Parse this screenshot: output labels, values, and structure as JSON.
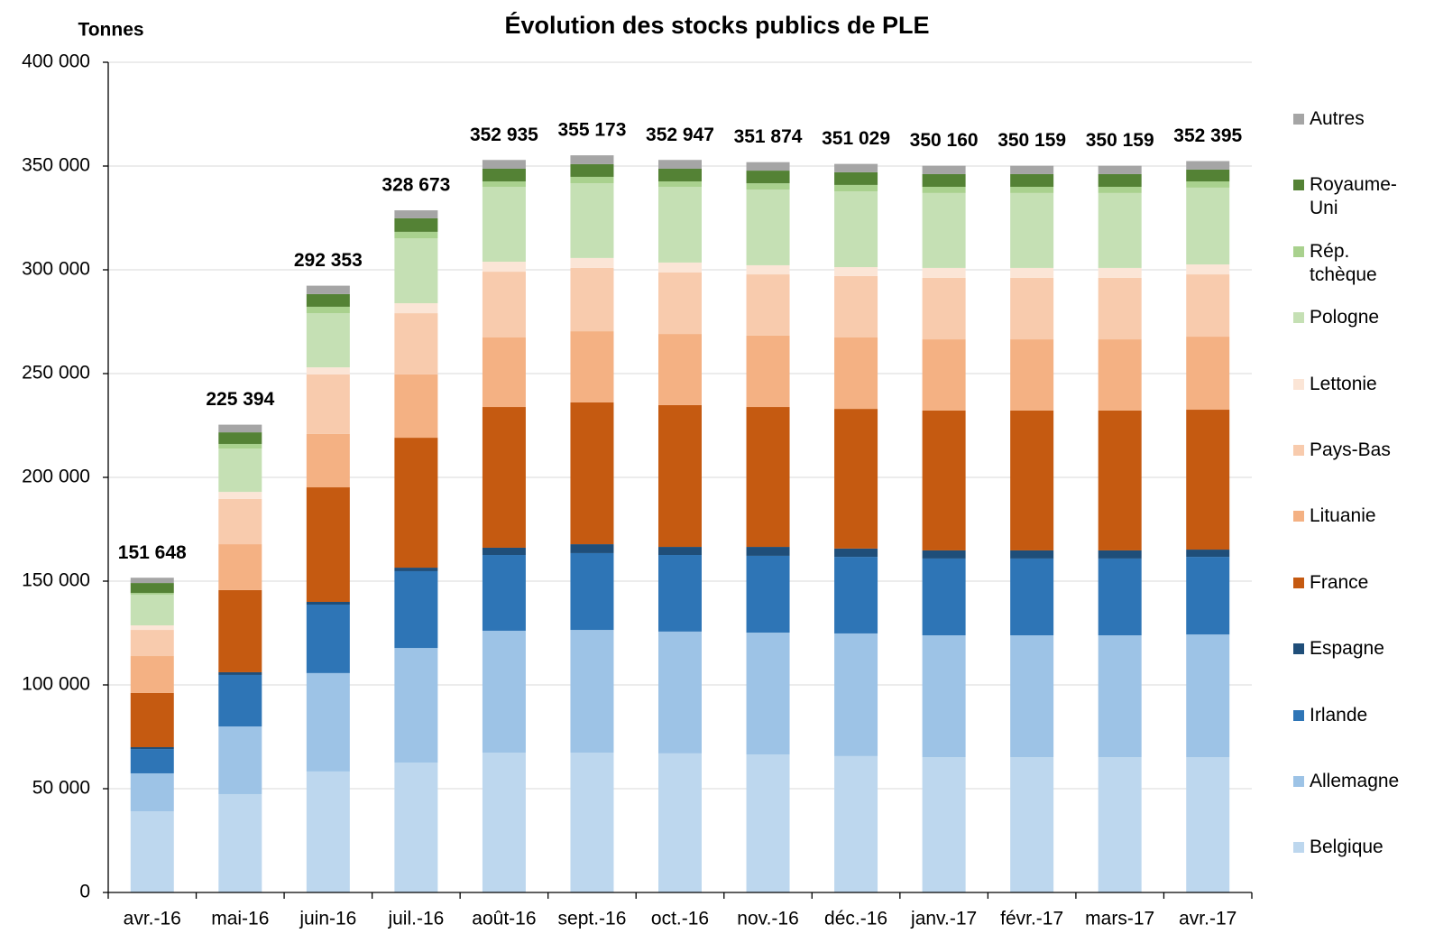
{
  "chart_data": {
    "type": "stacked_bar",
    "title": "Évolution des stocks publics de PLE",
    "y_label": "Tonnes",
    "categories": [
      "avr.-16",
      "mai-16",
      "juin-16",
      "juil.-16",
      "août-16",
      "sept.-16",
      "oct.-16",
      "nov.-16",
      "déc.-16",
      "janv.-17",
      "févr.-17",
      "mars-17",
      "avr.-17"
    ],
    "series": [
      {
        "name": "Belgique",
        "color": "#bdd7ee",
        "values": [
          39100,
          47400,
          58300,
          62600,
          67400,
          67400,
          67000,
          66500,
          65700,
          65200,
          65200,
          65200,
          65200
        ]
      },
      {
        "name": "Allemagne",
        "color": "#9dc3e6",
        "values": [
          18300,
          32600,
          47400,
          55200,
          58700,
          59100,
          58700,
          58700,
          59100,
          58700,
          58700,
          58700,
          59100
        ]
      },
      {
        "name": "Irlande",
        "color": "#2e75b6",
        "values": [
          11700,
          24800,
          33000,
          37000,
          36500,
          37000,
          36900,
          37000,
          36900,
          37000,
          37000,
          37000,
          37400
        ]
      },
      {
        "name": "Espagne",
        "color": "#1f4e79",
        "values": [
          900,
          1300,
          1300,
          1700,
          3500,
          4300,
          3900,
          4300,
          4000,
          3900,
          3900,
          3900,
          3500
        ]
      },
      {
        "name": "France",
        "color": "#c55a11",
        "values": [
          26100,
          39600,
          55200,
          62600,
          67800,
          68300,
          68300,
          67400,
          67300,
          67400,
          67400,
          67400,
          67400
        ]
      },
      {
        "name": "Lituanie",
        "color": "#f4b183",
        "values": [
          17800,
          22100,
          25700,
          30500,
          33500,
          34300,
          34300,
          34400,
          34400,
          34300,
          34300,
          34300,
          35200
        ]
      },
      {
        "name": "Pays-Bas",
        "color": "#f8cbad",
        "values": [
          12600,
          21800,
          28700,
          29500,
          31700,
          30500,
          29600,
          29500,
          29600,
          29600,
          29600,
          29600,
          30000
        ]
      },
      {
        "name": "Lettonie",
        "color": "#fbe5d6",
        "values": [
          2200,
          3400,
          3400,
          4800,
          4800,
          4800,
          4800,
          4400,
          4300,
          4800,
          4800,
          4800,
          4800
        ]
      },
      {
        "name": "Pologne",
        "color": "#c5e0b4",
        "values": [
          14800,
          20900,
          26100,
          31300,
          36100,
          36000,
          36500,
          36500,
          36500,
          36100,
          36100,
          36100,
          37000
        ]
      },
      {
        "name": "Rép. tchèque",
        "color": "#a9d18e",
        "values": [
          800,
          2200,
          3100,
          3100,
          2600,
          3100,
          2600,
          3000,
          3100,
          3000,
          3000,
          3000,
          3000
        ]
      },
      {
        "name": "Royaume-Uni",
        "color": "#548235",
        "values": [
          4800,
          5600,
          6100,
          6500,
          6100,
          6100,
          6100,
          6100,
          6100,
          6100,
          6100,
          6100,
          5700
        ]
      },
      {
        "name": "Autres",
        "color": "#a5a5a5",
        "values": [
          2548,
          3694,
          4053,
          3873,
          4235,
          4273,
          4247,
          4074,
          4029,
          4060,
          4059,
          4059,
          4095
        ]
      }
    ],
    "totals": [
      151648,
      225394,
      292353,
      328673,
      352935,
      355173,
      352947,
      351874,
      351029,
      350160,
      350159,
      350159,
      352395
    ],
    "total_labels": [
      "151 648",
      "225 394",
      "292 353",
      "328 673",
      "352 935",
      "355 173",
      "352 947",
      "351 874",
      "351 029",
      "350 160",
      "350 159",
      "350 159",
      "352 395"
    ],
    "ylim": [
      0,
      400000
    ],
    "yticks": [
      0,
      {
        "value": 50000,
        "label": "50 000"
      },
      {
        "value": 100000,
        "label": "100 000"
      },
      {
        "value": 150000,
        "label": "150 000"
      },
      {
        "value": 200000,
        "label": "200 000"
      },
      {
        "value": 250000,
        "label": "250 000"
      },
      {
        "value": 300000,
        "label": "300 000"
      },
      {
        "value": 350000,
        "label": "350 000"
      },
      {
        "value": 400000,
        "label": "400 000"
      }
    ],
    "grid": true,
    "legend": "right"
  }
}
